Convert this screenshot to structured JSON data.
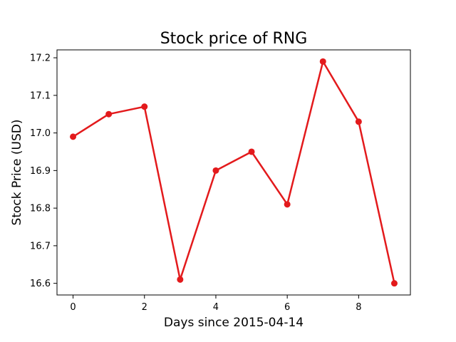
{
  "chart_data": {
    "type": "line",
    "title": "Stock price of RNG",
    "xlabel": "Days since 2015-04-14",
    "ylabel": "Stock Price (USD)",
    "x": [
      0,
      1,
      2,
      3,
      4,
      5,
      6,
      7,
      8,
      9
    ],
    "series": [
      {
        "values": [
          16.99,
          17.05,
          17.07,
          16.61,
          16.9,
          16.95,
          16.81,
          17.19,
          17.03,
          16.6
        ],
        "color": "#e31a1c"
      }
    ],
    "xlim": [
      -0.45,
      9.45
    ],
    "ylim": [
      16.569,
      17.221
    ],
    "x_ticks": [
      0,
      2,
      4,
      6,
      8
    ],
    "x_tick_labels": [
      "0",
      "2",
      "4",
      "6",
      "8"
    ],
    "y_ticks": [
      16.6,
      16.7,
      16.8,
      16.9,
      17.0,
      17.1,
      17.2
    ],
    "y_tick_labels": [
      "16.6",
      "16.7",
      "16.8",
      "16.9",
      "17.0",
      "17.1",
      "17.2"
    ],
    "grid": false,
    "marker": "circle"
  }
}
